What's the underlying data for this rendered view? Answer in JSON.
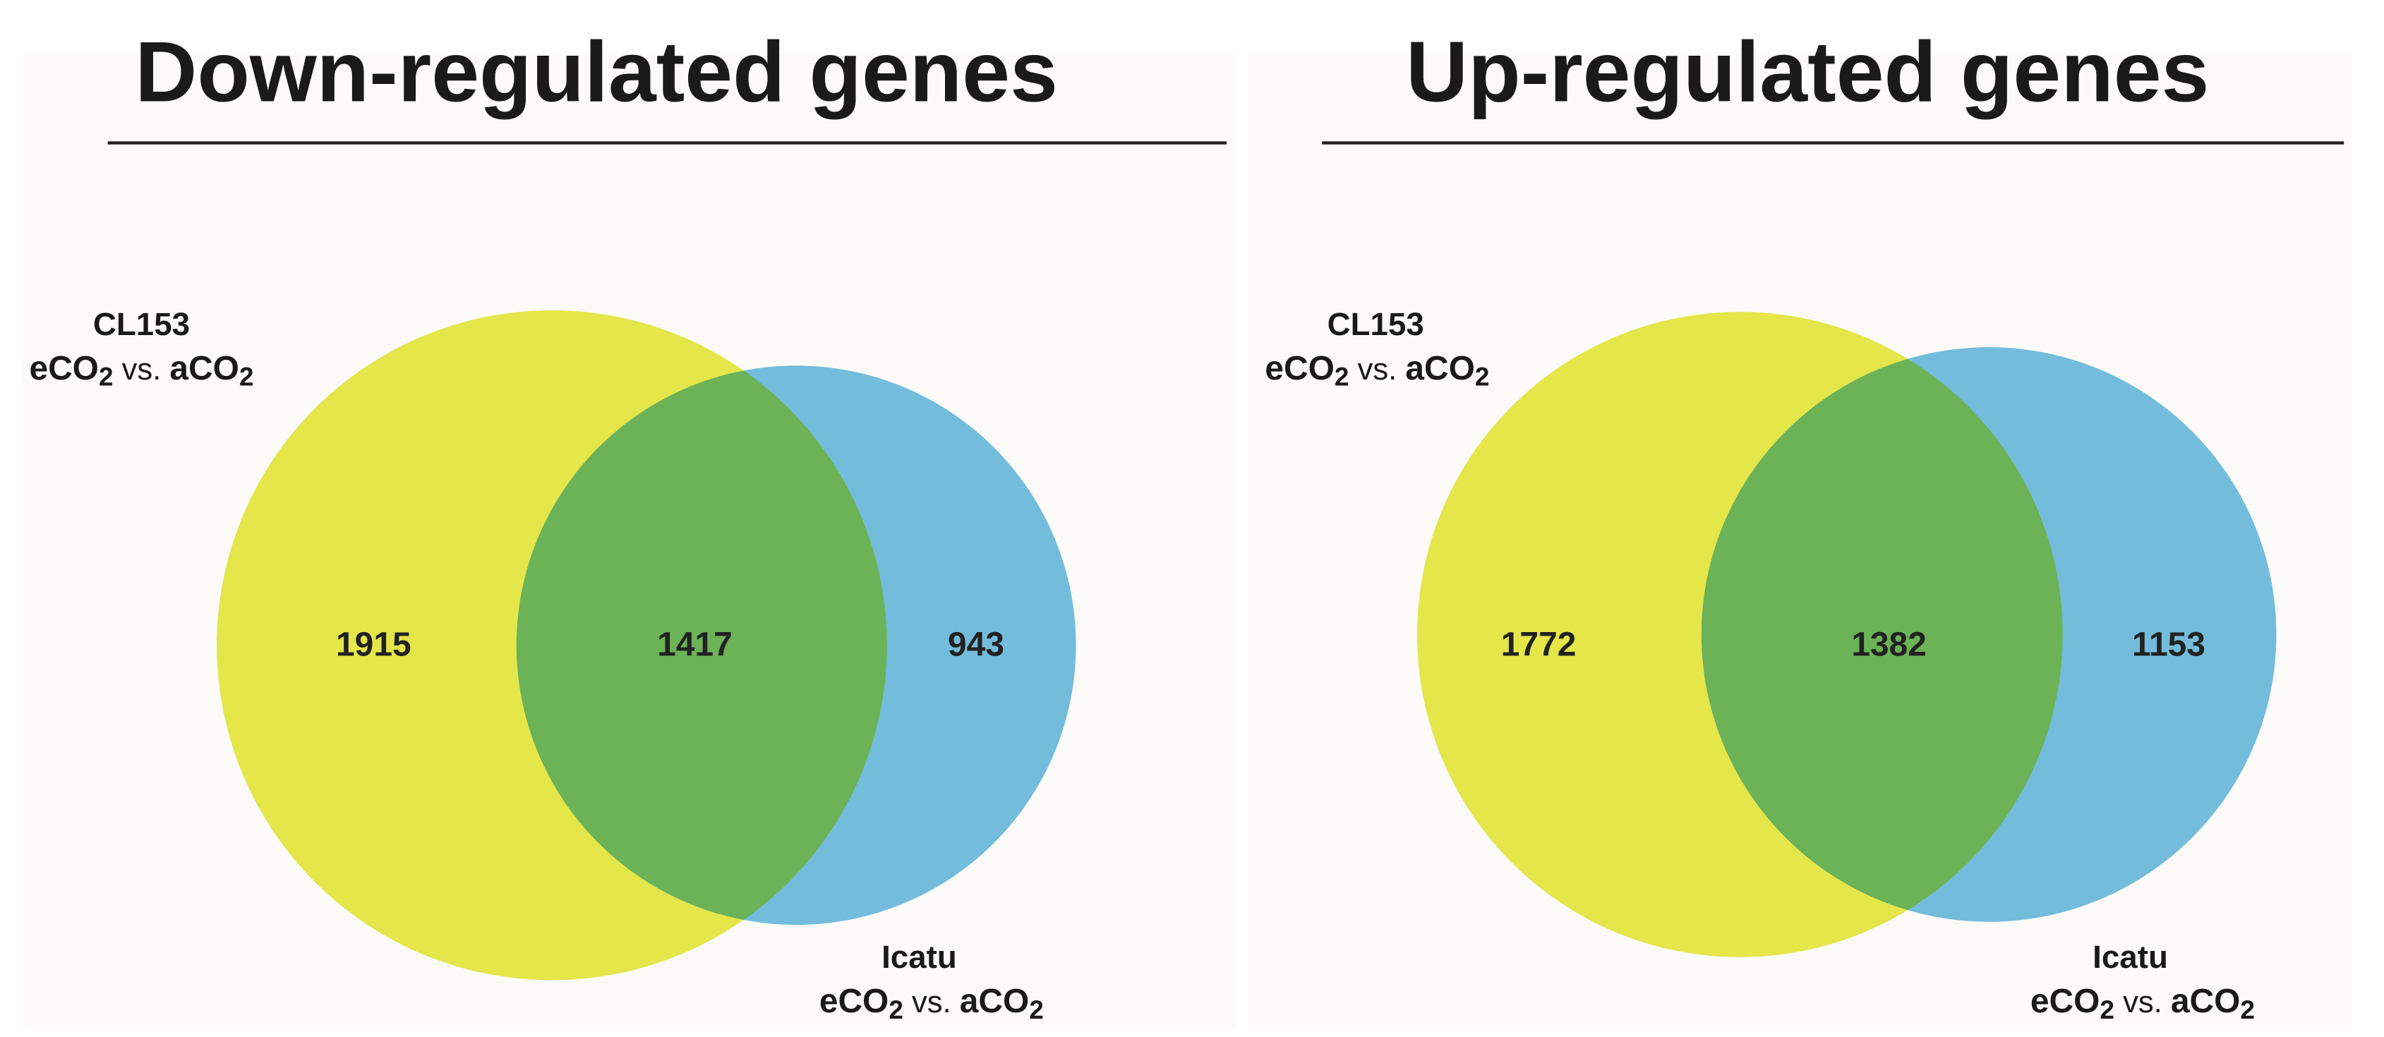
{
  "colors": {
    "set_a": "#e4e64a",
    "set_b": "#74bcdb",
    "overlap": "#6cb257",
    "panel_background": "#fcfbf9",
    "rule": "#222222"
  },
  "label_parts": {
    "prefix_treat": "eCO",
    "vs": " vs. ",
    "prefix_ctrl": "aCO",
    "subscript": "2"
  },
  "panels": [
    {
      "title": "Down-regulated genes",
      "set_a": {
        "name": "CL153"
      },
      "set_b": {
        "name": "Icatu"
      },
      "counts": {
        "only_a": "1915",
        "both": "1417",
        "only_b": "943"
      }
    },
    {
      "title": "Up-regulated genes",
      "set_a": {
        "name": "CL153"
      },
      "set_b": {
        "name": "Icatu"
      },
      "counts": {
        "only_a": "1772",
        "both": "1382",
        "only_b": "1153"
      }
    }
  ]
}
